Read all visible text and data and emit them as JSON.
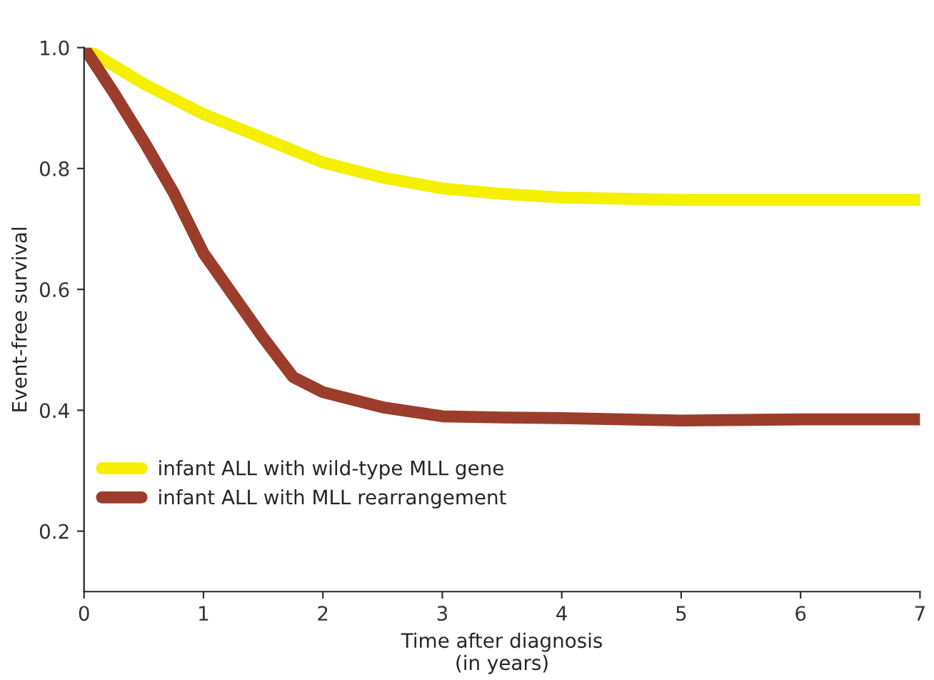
{
  "chart_data": {
    "type": "line",
    "xlabel": "Time after diagnosis\n(in years)",
    "ylabel": "Event-free survival",
    "x": [
      0,
      0.25,
      0.5,
      0.75,
      1,
      1.25,
      1.5,
      1.75,
      2,
      2.5,
      3,
      3.5,
      4,
      5,
      6,
      7
    ],
    "series": [
      {
        "name": "infant ALL with wild-type MLL gene",
        "color": "#f5ef00",
        "values": [
          1.0,
          0.97,
          0.94,
          0.915,
          0.89,
          0.87,
          0.85,
          0.83,
          0.81,
          0.785,
          0.767,
          0.758,
          0.752,
          0.748,
          0.748,
          0.748
        ]
      },
      {
        "name": "infant ALL with MLL rearrangement",
        "color": "#9b3d2a",
        "values": [
          1.0,
          0.925,
          0.845,
          0.76,
          0.66,
          0.59,
          0.52,
          0.455,
          0.43,
          0.405,
          0.39,
          0.388,
          0.387,
          0.383,
          0.385,
          0.385
        ]
      }
    ],
    "xlim": [
      0,
      7
    ],
    "xticks": [
      0,
      1,
      2,
      3,
      4,
      5,
      6,
      7
    ],
    "ylim": [
      0.1,
      1.0
    ],
    "yticks": [
      0.2,
      0.4,
      0.6,
      0.8,
      {
        "value": 1,
        "label": "1.0"
      }
    ],
    "grid": false,
    "legend": "bottom left",
    "marker": "none",
    "line_style": "solid"
  }
}
